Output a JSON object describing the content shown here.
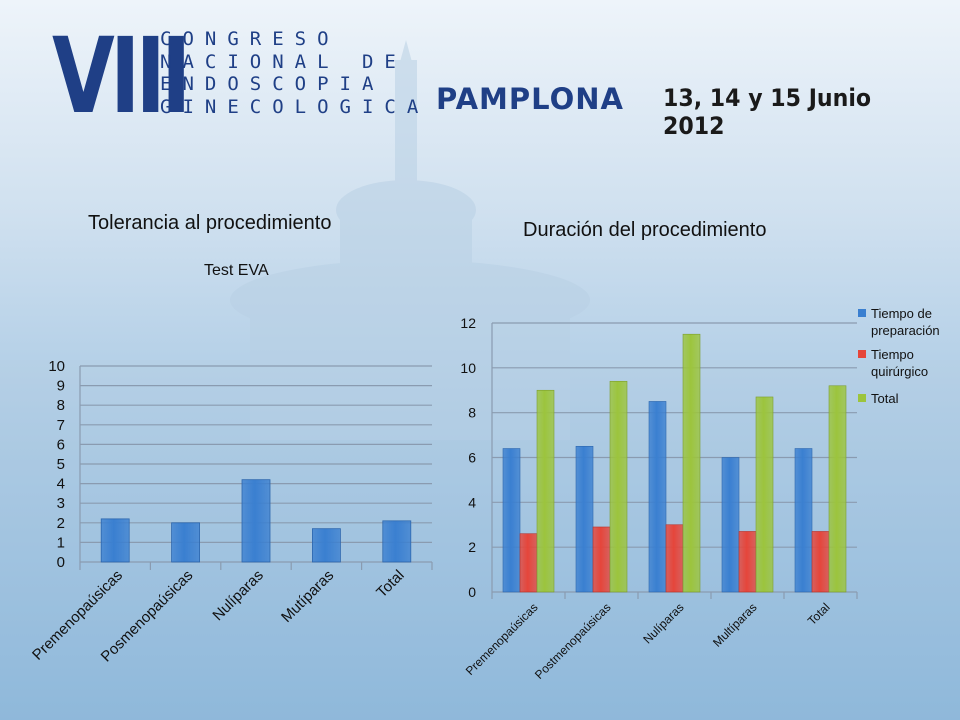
{
  "header": {
    "roman_numeral": "VIII",
    "congress_lines": [
      "CONGRESO",
      "NACIONAL DE",
      "ENDOSCOPIA",
      "GINECOLOGICA"
    ],
    "city": "PAMPLONA",
    "dates": "13, 14 y 15 Junio 2012"
  },
  "colors": {
    "blue": "#3a7fd0",
    "red": "#e5453a",
    "green": "#9cc43c",
    "header_blue": "#1f3f86"
  },
  "chart_data": [
    {
      "type": "bar",
      "title": "Tolerancia al procedimiento",
      "subtitle": "Test EVA",
      "categories": [
        "Premenopaúsicas",
        "Posmenopaúsicas",
        "Nulíparas",
        "Mutíparas",
        "Total"
      ],
      "values": [
        2.2,
        2.0,
        4.2,
        1.7,
        2.1
      ],
      "ylim": [
        0,
        10
      ],
      "yticks": [
        0,
        1,
        2,
        3,
        4,
        5,
        6,
        7,
        8,
        9,
        10
      ],
      "grid": true,
      "legend": "none"
    },
    {
      "type": "bar",
      "title": "Duración del procedimiento",
      "categories": [
        "Premenopaúsicas",
        "Postmenopaúsicas",
        "Nulíparas",
        "Multíparas",
        "Total"
      ],
      "series": [
        {
          "name": "Tiempo de preparación",
          "values": [
            6.4,
            6.5,
            8.5,
            6.0,
            6.4
          ]
        },
        {
          "name": "Tiempo quirúrgico",
          "values": [
            2.6,
            2.9,
            3.0,
            2.7,
            2.7
          ]
        },
        {
          "name": "Total",
          "values": [
            9.0,
            9.4,
            11.5,
            8.7,
            9.2
          ]
        }
      ],
      "ylim": [
        0,
        12
      ],
      "yticks": [
        0,
        2,
        4,
        6,
        8,
        10,
        12
      ],
      "grid": true,
      "legend": "right"
    }
  ]
}
